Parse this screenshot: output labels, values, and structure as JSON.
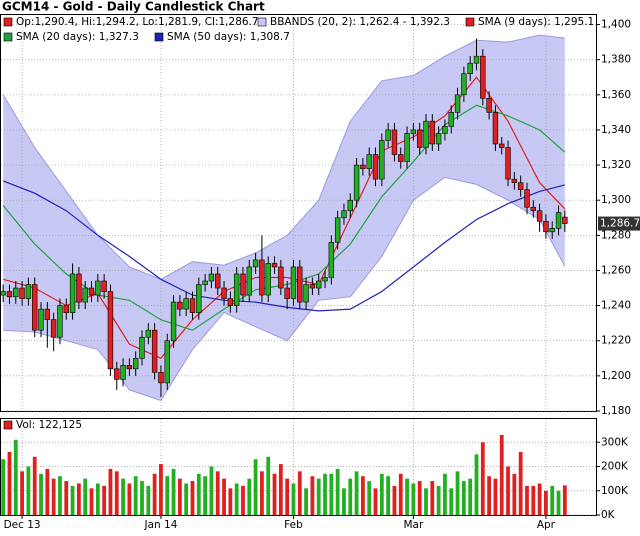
{
  "chart_data": [
    {
      "type": "candlestick",
      "title": "GCM14 - Gold - Daily Candlestick Chart",
      "name": "Op:1,290.4, Hi:1,294.2, Lo:1,281.9, Cl:1,286.7",
      "up_color": "#22b022",
      "down_color": "#e02020",
      "categories": [
        null,
        null,
        null,
        "Dec 13",
        null,
        null,
        null,
        null,
        null,
        null,
        null,
        null,
        null,
        null,
        null,
        null,
        null,
        null,
        null,
        null,
        null,
        null,
        null,
        null,
        null,
        "Jan 14",
        null,
        null,
        null,
        null,
        null,
        null,
        null,
        null,
        null,
        null,
        null,
        null,
        null,
        null,
        null,
        null,
        null,
        null,
        null,
        null,
        "Feb",
        null,
        null,
        null,
        null,
        null,
        null,
        null,
        null,
        null,
        null,
        null,
        null,
        null,
        null,
        null,
        null,
        null,
        null,
        "Mar",
        null,
        null,
        null,
        null,
        null,
        null,
        null,
        null,
        null,
        null,
        null,
        null,
        null,
        null,
        null,
        null,
        null,
        null,
        null,
        null,
        "Apr",
        null,
        null,
        null
      ],
      "open": [
        1246,
        1248,
        1245,
        1250,
        1244,
        1252,
        1226,
        1238,
        1232,
        1222,
        1240,
        1236,
        1258,
        1242,
        1250,
        1246,
        1254,
        1248,
        1204,
        1198,
        1206,
        1204,
        1210,
        1222,
        1226,
        1202,
        1196,
        1220,
        1242,
        1238,
        1244,
        1236,
        1252,
        1254,
        1258,
        1250,
        1244,
        1240,
        1258,
        1246,
        1262,
        1266,
        1246,
        1264,
        1262,
        1250,
        1244,
        1262,
        1242,
        1252,
        1250,
        1254,
        1256,
        1276,
        1290,
        1294,
        1300,
        1320,
        1318,
        1326,
        1312,
        1334,
        1340,
        1326,
        1322,
        1338,
        1340,
        1330,
        1345,
        1332,
        1338,
        1342,
        1350,
        1360,
        1372,
        1378,
        1382,
        1358,
        1350,
        1332,
        1330,
        1312,
        1310,
        1306,
        1296,
        1294,
        1288,
        1282,
        1284,
        1290.4
      ],
      "high": [
        1252,
        1252,
        1254,
        1254,
        1256,
        1256,
        1242,
        1242,
        1236,
        1244,
        1244,
        1264,
        1262,
        1254,
        1254,
        1258,
        1258,
        1252,
        1208,
        1210,
        1210,
        1214,
        1226,
        1230,
        1230,
        1206,
        1224,
        1246,
        1246,
        1248,
        1248,
        1256,
        1258,
        1262,
        1262,
        1254,
        1248,
        1262,
        1262,
        1266,
        1270,
        1280,
        1268,
        1268,
        1266,
        1254,
        1266,
        1266,
        1256,
        1256,
        1258,
        1260,
        1280,
        1294,
        1298,
        1304,
        1324,
        1324,
        1330,
        1330,
        1338,
        1344,
        1344,
        1330,
        1342,
        1344,
        1344,
        1349,
        1349,
        1342,
        1346,
        1354,
        1364,
        1376,
        1382,
        1392,
        1386,
        1362,
        1354,
        1336,
        1334,
        1316,
        1314,
        1310,
        1300,
        1298,
        1292,
        1288,
        1297,
        1294.2
      ],
      "low": [
        1242,
        1241,
        1241,
        1240,
        1240,
        1222,
        1222,
        1216,
        1214,
        1218,
        1232,
        1232,
        1238,
        1238,
        1242,
        1242,
        1244,
        1200,
        1192,
        1194,
        1200,
        1200,
        1206,
        1218,
        1198,
        1188,
        1192,
        1216,
        1234,
        1234,
        1232,
        1232,
        1248,
        1250,
        1246,
        1240,
        1236,
        1236,
        1242,
        1242,
        1258,
        1242,
        1242,
        1258,
        1246,
        1238,
        1240,
        1238,
        1238,
        1246,
        1246,
        1250,
        1252,
        1272,
        1286,
        1290,
        1296,
        1314,
        1314,
        1308,
        1308,
        1330,
        1322,
        1318,
        1318,
        1334,
        1326,
        1326,
        1328,
        1328,
        1334,
        1338,
        1346,
        1356,
        1368,
        1374,
        1354,
        1346,
        1328,
        1326,
        1308,
        1306,
        1302,
        1292,
        1290,
        1282,
        1278,
        1278,
        1280,
        1281.9
      ],
      "close": [
        1248,
        1245,
        1250,
        1244,
        1252,
        1226,
        1238,
        1232,
        1222,
        1240,
        1236,
        1258,
        1242,
        1250,
        1246,
        1254,
        1248,
        1204,
        1198,
        1206,
        1204,
        1210,
        1222,
        1226,
        1202,
        1196,
        1220,
        1242,
        1238,
        1244,
        1236,
        1252,
        1254,
        1258,
        1250,
        1244,
        1240,
        1258,
        1246,
        1262,
        1266,
        1246,
        1264,
        1262,
        1250,
        1244,
        1262,
        1242,
        1252,
        1250,
        1254,
        1256,
        1276,
        1290,
        1294,
        1300,
        1320,
        1318,
        1326,
        1312,
        1334,
        1340,
        1326,
        1322,
        1338,
        1340,
        1330,
        1345,
        1332,
        1338,
        1342,
        1350,
        1360,
        1372,
        1378,
        1382,
        1358,
        1350,
        1332,
        1330,
        1312,
        1310,
        1306,
        1296,
        1294,
        1288,
        1282,
        1284,
        1293,
        1286.7
      ],
      "last_label": "1,286.7",
      "band": {
        "name": "BBANDS (20, 2): 1,262.4 - 1,392.3",
        "color": "#c8c8f4",
        "edge": "#9a9ae0",
        "x": [
          0,
          5,
          10,
          15,
          20,
          25,
          30,
          35,
          40,
          45,
          50,
          55,
          60,
          65,
          70,
          75,
          80,
          85,
          89
        ],
        "upper": [
          1360,
          1330,
          1305,
          1280,
          1262,
          1255,
          1265,
          1263,
          1270,
          1280,
          1300,
          1345,
          1368,
          1371,
          1382,
          1391,
          1390,
          1394,
          1392.3
        ],
        "lower": [
          1226,
          1225,
          1220,
          1215,
          1192,
          1186,
          1215,
          1236,
          1228,
          1220,
          1243,
          1245,
          1268,
          1300,
          1313,
          1309,
          1300,
          1289,
          1262.4
        ]
      },
      "lines": [
        {
          "name": "SMA (9 days): 1,295.1",
          "color": "#e02020",
          "x": [
            0,
            5,
            10,
            15,
            20,
            25,
            30,
            35,
            40,
            45,
            50,
            55,
            60,
            65,
            70,
            75,
            80,
            85,
            89
          ],
          "values": [
            1255,
            1250,
            1240,
            1247,
            1218,
            1210,
            1232,
            1248,
            1256,
            1256,
            1252,
            1290,
            1328,
            1336,
            1348,
            1370,
            1345,
            1310,
            1295.1
          ]
        },
        {
          "name": "SMA (20 days): 1,327.3",
          "color": "#20a040",
          "x": [
            0,
            5,
            10,
            15,
            20,
            25,
            30,
            35,
            40,
            45,
            50,
            55,
            60,
            65,
            70,
            75,
            80,
            85,
            89
          ],
          "values": [
            1297,
            1275,
            1258,
            1246,
            1243,
            1232,
            1226,
            1238,
            1249,
            1252,
            1258,
            1275,
            1302,
            1322,
            1343,
            1354,
            1348,
            1340,
            1327.3
          ]
        },
        {
          "name": "SMA (50 days): 1,308.7",
          "color": "#2020c0",
          "x": [
            0,
            5,
            10,
            15,
            20,
            25,
            30,
            35,
            40,
            45,
            50,
            55,
            60,
            65,
            70,
            75,
            80,
            85,
            89
          ],
          "values": [
            1311,
            1304,
            1294,
            1280,
            1268,
            1255,
            1246,
            1243,
            1242,
            1239,
            1237,
            1238,
            1248,
            1262,
            1276,
            1289,
            1298,
            1305,
            1308.7
          ]
        }
      ],
      "ylim": [
        1180,
        1406
      ],
      "yticks": [
        {
          "value": 1180,
          "label": "1,180"
        },
        {
          "value": 1200,
          "label": "1,200"
        },
        {
          "value": 1220,
          "label": "1,220"
        },
        {
          "value": 1240,
          "label": "1,240"
        },
        {
          "value": 1260,
          "label": "1,260"
        },
        {
          "value": 1280,
          "label": "1,280"
        },
        {
          "value": 1300,
          "label": "1,300"
        },
        {
          "value": 1320,
          "label": "1,320"
        },
        {
          "value": 1340,
          "label": "1,340"
        },
        {
          "value": 1360,
          "label": "1,360"
        },
        {
          "value": 1380,
          "label": "1,380"
        },
        {
          "value": 1400,
          "label": "1,400"
        }
      ],
      "grid": true
    },
    {
      "type": "bar",
      "name": "Vol: 122,125",
      "values": [
        230000,
        260000,
        310000,
        180000,
        200000,
        240000,
        170000,
        190000,
        150000,
        160000,
        140000,
        120000,
        130000,
        150000,
        110000,
        130000,
        120000,
        190000,
        180000,
        150000,
        130000,
        160000,
        140000,
        120000,
        170000,
        210000,
        160000,
        190000,
        150000,
        130000,
        140000,
        170000,
        160000,
        200000,
        180000,
        150000,
        110000,
        130000,
        120000,
        150000,
        230000,
        180000,
        240000,
        170000,
        210000,
        150000,
        130000,
        180000,
        110000,
        160000,
        150000,
        170000,
        170000,
        190000,
        110000,
        150000,
        180000,
        160000,
        140000,
        110000,
        170000,
        160000,
        120000,
        170000,
        150000,
        130000,
        140000,
        110000,
        140000,
        120000,
        170000,
        110000,
        180000,
        140000,
        150000,
        250000,
        300000,
        160000,
        150000,
        330000,
        200000,
        170000,
        260000,
        120000,
        120000,
        130000,
        100000,
        120000,
        100000,
        122125
      ],
      "ylim": [
        0,
        400000
      ],
      "yticks": [
        {
          "value": 0,
          "label": "0K"
        },
        {
          "value": 100000,
          "label": "100K"
        },
        {
          "value": 200000,
          "label": "200K"
        },
        {
          "value": 300000,
          "label": "300K"
        }
      ],
      "grid": true
    }
  ]
}
